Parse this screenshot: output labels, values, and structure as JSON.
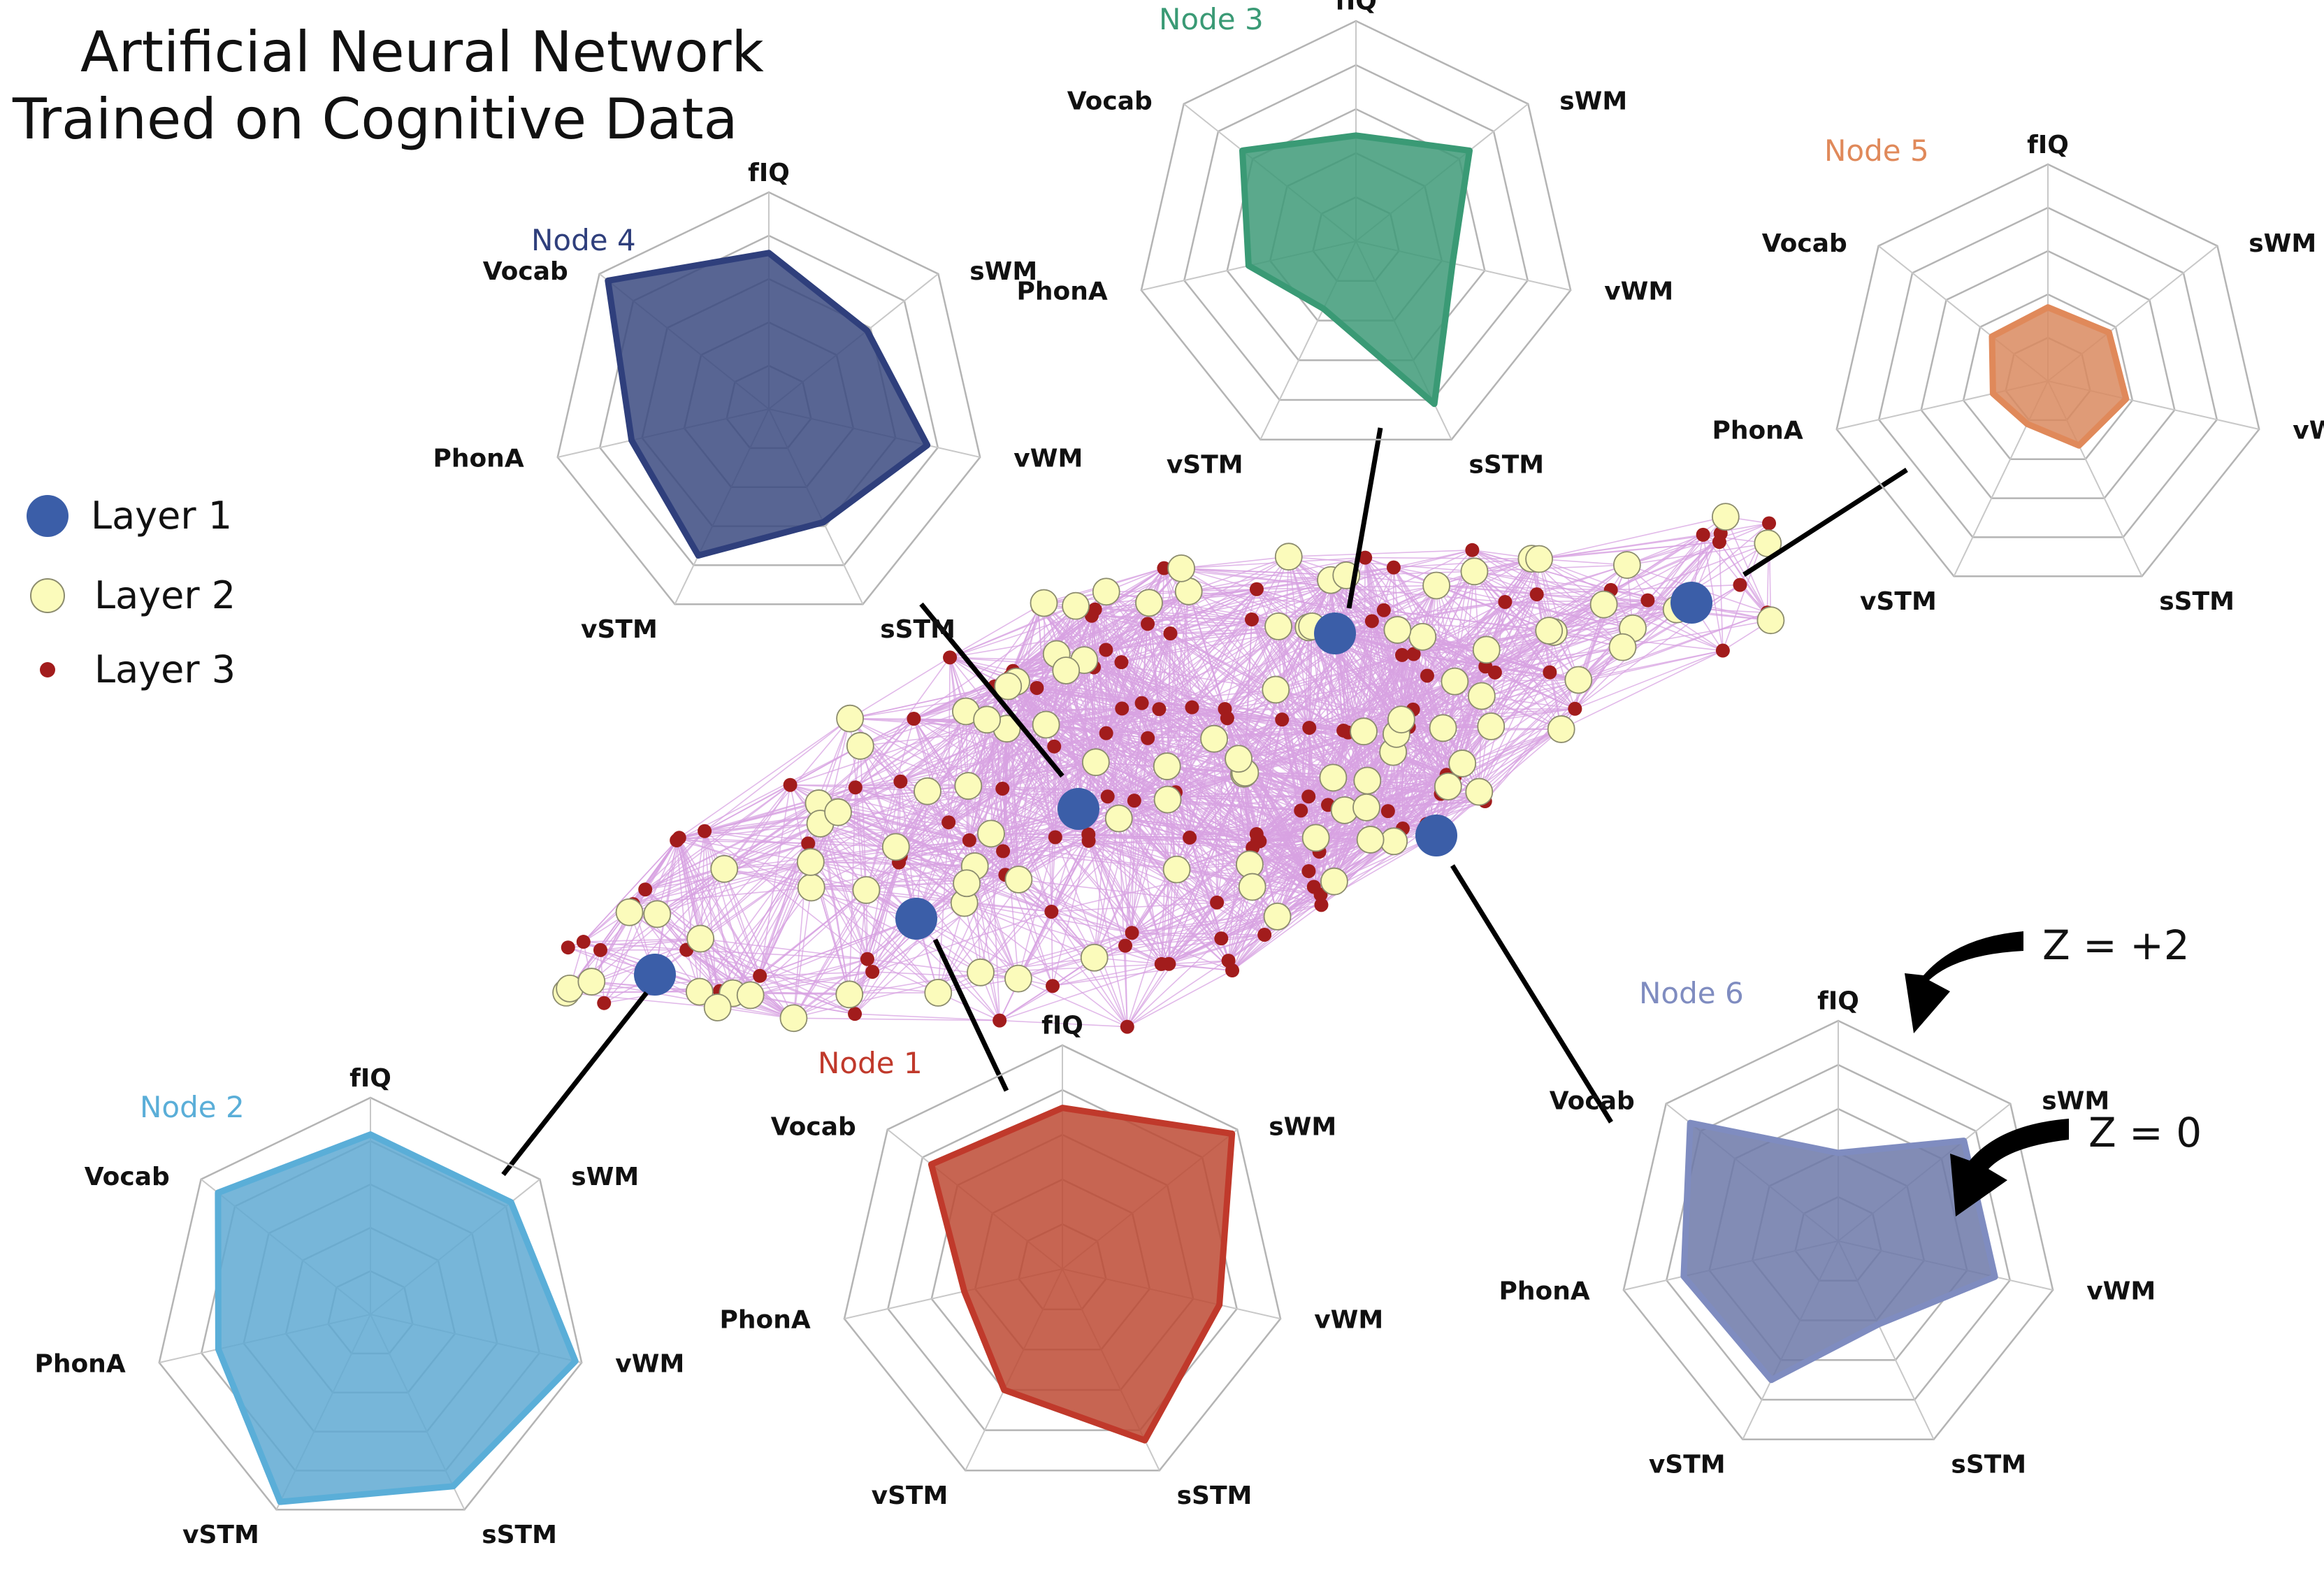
{
  "title": {
    "line1": "Artificial Neural Network",
    "line2": "Trained on Cognitive Data"
  },
  "legend": [
    {
      "label": "Layer 1",
      "color": "#3b5ea8"
    },
    {
      "label": "Layer 2",
      "color": "#fbfbbb"
    },
    {
      "label": "Layer 3",
      "color": "#a21c1c"
    }
  ],
  "axes": [
    "fIQ",
    "sWM",
    "vWM",
    "sSTM",
    "vSTM",
    "PhonA",
    "Vocab"
  ],
  "nodes": [
    {
      "id": "node-4",
      "label": "Node 4",
      "color": "#2f3f7c",
      "fill": "#3b4a80",
      "values": [
        0.72,
        0.58,
        0.75,
        0.58,
        0.75,
        0.65,
        0.95
      ]
    },
    {
      "id": "node-3",
      "label": "Node 3",
      "color": "#3a9a75",
      "fill": "#3e9a78",
      "values": [
        0.48,
        0.66,
        0.45,
        0.82,
        0.34,
        0.5,
        0.66
      ]
    },
    {
      "id": "node-5",
      "label": "Node 5",
      "color": "#e0895a",
      "fill": "#d9895f",
      "values": [
        0.34,
        0.36,
        0.37,
        0.33,
        0.22,
        0.26,
        0.33
      ]
    },
    {
      "id": "node-2",
      "label": "Node 2",
      "color": "#5aaed8",
      "fill": "#5fa9d2",
      "values": [
        0.83,
        0.83,
        0.97,
        0.88,
        0.96,
        0.72,
        0.9
      ]
    },
    {
      "id": "node-1",
      "label": "Node 1",
      "color": "#c0392b",
      "fill": "#bd4a34",
      "values": [
        0.72,
        0.97,
        0.72,
        0.85,
        0.6,
        0.45,
        0.75
      ]
    },
    {
      "id": "node-6",
      "label": "Node 6",
      "color": "#7f8cc0",
      "fill": "#6c78a8",
      "values": [
        0.4,
        0.73,
        0.73,
        0.42,
        0.7,
        0.72,
        0.86
      ]
    }
  ],
  "annotations": {
    "z_plus": "Z = +2",
    "z_zero": "Z = 0"
  }
}
